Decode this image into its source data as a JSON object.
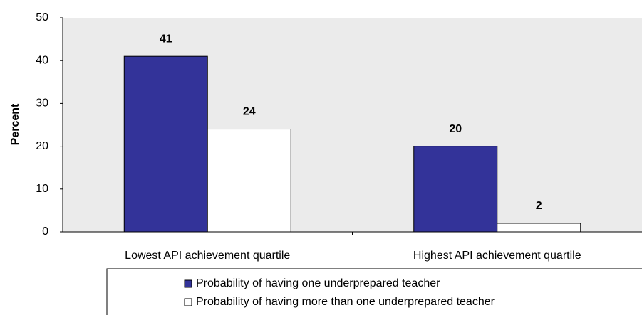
{
  "chart_data": {
    "type": "bar",
    "y_label": "Percent",
    "categories": [
      "Lowest API achievement quartile",
      "Highest API achievement quartile"
    ],
    "series": [
      {
        "name": "Probability of having one underprepared teacher",
        "color": "#333399",
        "values": [
          41,
          20
        ]
      },
      {
        "name": "Probability of having more than one underprepared teacher",
        "color": "#ffffff",
        "values": [
          24,
          2
        ]
      }
    ],
    "ylim": [
      0,
      50
    ],
    "yticks": [
      0,
      10,
      20,
      30,
      40,
      50
    ],
    "grid": false,
    "legend": "bottom"
  }
}
